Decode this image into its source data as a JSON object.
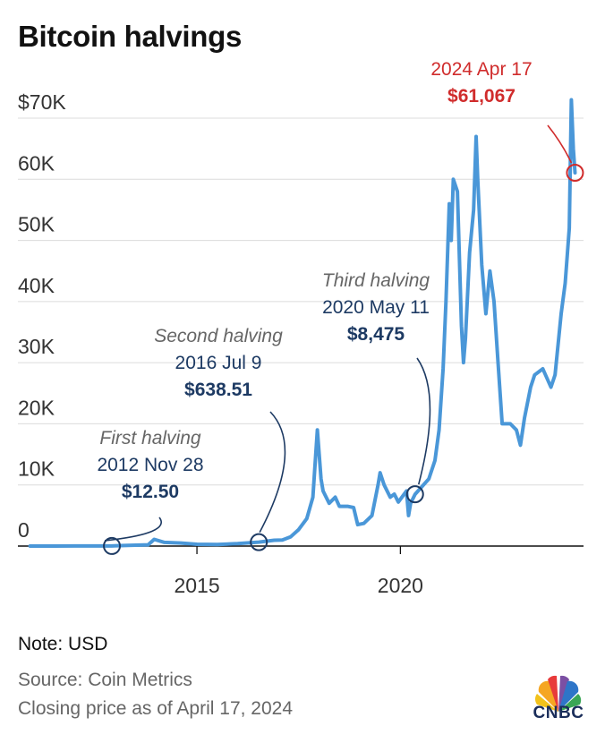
{
  "title": "Bitcoin halvings",
  "chart_data": {
    "type": "line",
    "title": "Bitcoin halvings",
    "xlabel": "",
    "ylabel": "",
    "xlim": [
      2010.6,
      2024.5
    ],
    "ylim": [
      0,
      70000
    ],
    "x_ticks": [
      {
        "value": 2015,
        "label": "2015"
      },
      {
        "value": 2020,
        "label": "2020"
      }
    ],
    "y_ticks": [
      {
        "value": 0,
        "label": "0"
      },
      {
        "value": 10000,
        "label": "10K"
      },
      {
        "value": 20000,
        "label": "20K"
      },
      {
        "value": 30000,
        "label": "30K"
      },
      {
        "value": 40000,
        "label": "40K"
      },
      {
        "value": 50000,
        "label": "50K"
      },
      {
        "value": 60000,
        "label": "60K"
      },
      {
        "value": 70000,
        "label": "$70K"
      }
    ],
    "grid": "horizontal",
    "line_color": "#4a97d8",
    "series": [
      {
        "x": [
          2010.9,
          2011.5,
          2012.0,
          2012.5,
          2012.9,
          2013.3,
          2013.8,
          2013.95,
          2014.2,
          2014.6,
          2015.0,
          2015.5,
          2016.0,
          2016.52,
          2016.9,
          2017.1,
          2017.3,
          2017.5,
          2017.7,
          2017.85,
          2017.96,
          2018.05,
          2018.1,
          2018.25,
          2018.4,
          2018.5,
          2018.7,
          2018.85,
          2018.95,
          2019.1,
          2019.3,
          2019.45,
          2019.5,
          2019.6,
          2019.75,
          2019.85,
          2019.95,
          2020.15,
          2020.2,
          2020.25,
          2020.36,
          2020.5,
          2020.7,
          2020.85,
          2020.95,
          2021.05,
          2021.12,
          2021.2,
          2021.25,
          2021.3,
          2021.4,
          2021.5,
          2021.55,
          2021.6,
          2021.7,
          2021.8,
          2021.86,
          2021.9,
          2022.0,
          2022.1,
          2022.2,
          2022.3,
          2022.4,
          2022.5,
          2022.7,
          2022.85,
          2022.95,
          2023.05,
          2023.2,
          2023.3,
          2023.5,
          2023.7,
          2023.8,
          2023.95,
          2024.05,
          2024.15,
          2024.2,
          2024.25,
          2024.29
        ],
        "y": [
          0,
          5,
          10,
          10,
          12.5,
          120,
          200,
          1100,
          600,
          500,
          300,
          250,
          400,
          638.51,
          950,
          1000,
          1500,
          2700,
          4500,
          8000,
          19000,
          11000,
          9000,
          7000,
          8000,
          6500,
          6500,
          6300,
          3500,
          3700,
          5000,
          10000,
          12000,
          10000,
          8000,
          8500,
          7200,
          9000,
          5000,
          7000,
          8475,
          9500,
          11000,
          14000,
          19000,
          29000,
          40000,
          56000,
          50000,
          60000,
          58000,
          36000,
          30000,
          34000,
          48000,
          55000,
          67000,
          60000,
          46000,
          38000,
          45000,
          40000,
          30000,
          20000,
          20000,
          19000,
          16500,
          21000,
          26000,
          28000,
          29000,
          26000,
          28000,
          38000,
          43000,
          52000,
          73000,
          65000,
          61067
        ]
      }
    ],
    "annotations": [
      {
        "label": "First halving",
        "date": "2012 Nov 28",
        "price": "$12.50",
        "x": 2012.91,
        "y": 12.5,
        "color": "#1d3a63"
      },
      {
        "label": "Second halving",
        "date": "2016 Jul 9",
        "price": "$638.51",
        "x": 2016.52,
        "y": 638.51,
        "color": "#1d3a63"
      },
      {
        "label": "Third halving",
        "date": "2020 May 11",
        "price": "$8,475",
        "x": 2020.36,
        "y": 8475,
        "color": "#1d3a63"
      },
      {
        "label": "",
        "date": "2024 Apr 17",
        "price": "$61,067",
        "x": 2024.29,
        "y": 61067,
        "color": "#d02c2c"
      }
    ]
  },
  "footer": {
    "note": "Note: USD",
    "source": "Source: Coin Metrics",
    "closing": "Closing price as of April 17, 2024"
  },
  "logo": {
    "text": "CNBC",
    "icon": "peacock-icon"
  }
}
